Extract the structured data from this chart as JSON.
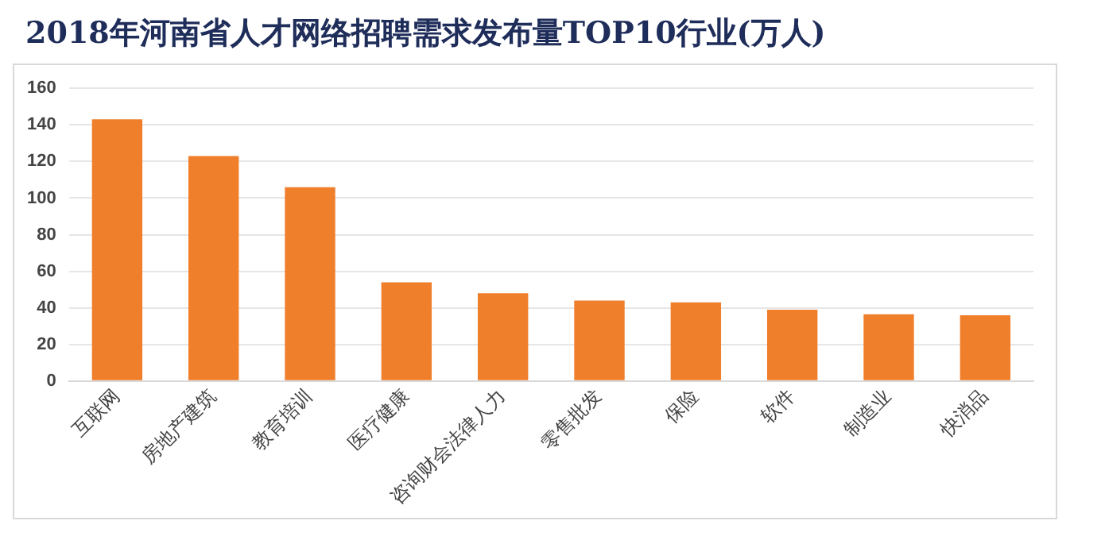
{
  "chart_data": {
    "type": "bar",
    "title": "2018年河南省人才网络招聘需求发布量TOP10行业(万人)",
    "categories": [
      "互联网",
      "房地产建筑",
      "教育培训",
      "医疗健康",
      "咨询财会法律人力",
      "零售批发",
      "保险",
      "软件",
      "制造业",
      "快消品"
    ],
    "values": [
      143,
      123,
      106,
      54,
      48,
      44,
      43,
      39,
      36.5,
      36
    ],
    "color": "#f07f2c",
    "ylim": [
      0,
      160
    ],
    "yticks": [
      0,
      20,
      40,
      60,
      80,
      100,
      120,
      140,
      160
    ],
    "grid": "y",
    "legend": false
  }
}
